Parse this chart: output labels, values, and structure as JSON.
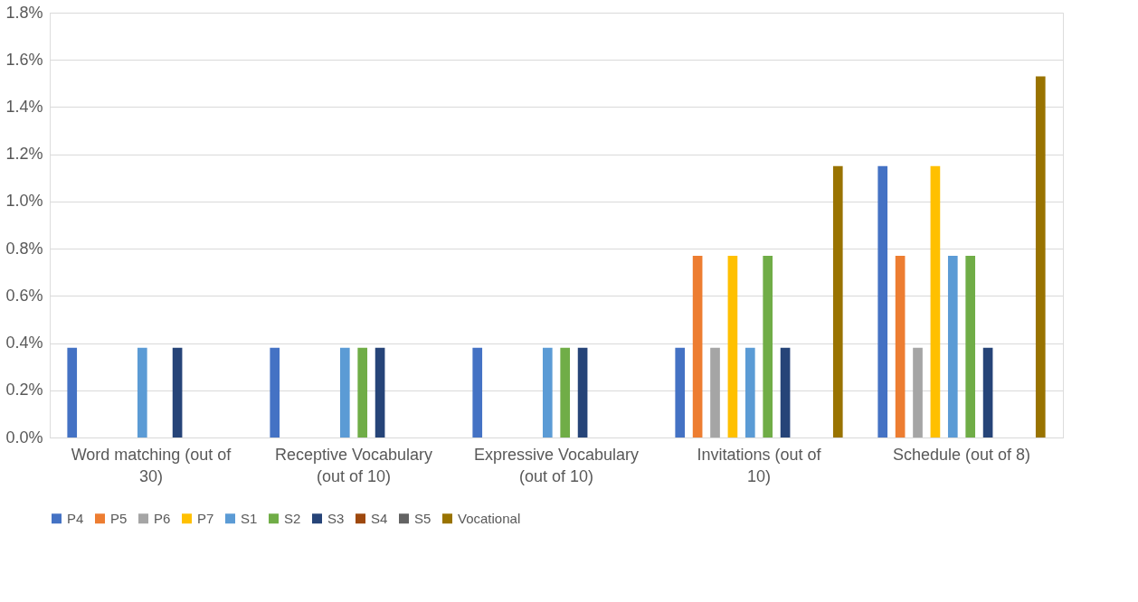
{
  "chart_data": {
    "type": "bar",
    "categories": [
      "Word matching (out of 30)",
      "Receptive Vocabulary (out of 10)",
      "Expressive Vocabulary (out of 10)",
      "Invitations (out of 10)",
      "Schedule (out of 8)"
    ],
    "series": [
      {
        "name": "P4",
        "color": "#4472c4",
        "values": [
          0.38,
          0.38,
          0.38,
          0.38,
          1.15
        ]
      },
      {
        "name": "P5",
        "color": "#ed7d31",
        "values": [
          0,
          0,
          0,
          0.77,
          0.77
        ]
      },
      {
        "name": "P6",
        "color": "#a5a5a5",
        "values": [
          0,
          0,
          0,
          0.38,
          0.38
        ]
      },
      {
        "name": "P7",
        "color": "#ffc000",
        "values": [
          0,
          0,
          0,
          0.77,
          1.15
        ]
      },
      {
        "name": "S1",
        "color": "#5b9bd5",
        "values": [
          0.38,
          0.38,
          0.38,
          0.38,
          0.77
        ]
      },
      {
        "name": "S2",
        "color": "#70ad47",
        "values": [
          0,
          0.38,
          0.38,
          0.77,
          0.77
        ]
      },
      {
        "name": "S3",
        "color": "#264478",
        "values": [
          0.38,
          0.38,
          0.38,
          0.38,
          0.38
        ]
      },
      {
        "name": "S4",
        "color": "#9e480e",
        "values": [
          0,
          0,
          0,
          0,
          0
        ]
      },
      {
        "name": "S5",
        "color": "#636363",
        "values": [
          0,
          0,
          0,
          0,
          0
        ]
      },
      {
        "name": "Vocational",
        "color": "#997300",
        "values": [
          0,
          0,
          0,
          1.15,
          1.53
        ]
      }
    ],
    "ylim": [
      0,
      1.8
    ],
    "yticks": [
      {
        "value": 0,
        "label": "0.0%"
      },
      {
        "value": 0.2,
        "label": "0.2%"
      },
      {
        "value": 0.4,
        "label": "0.4%"
      },
      {
        "value": 0.6,
        "label": "0.6%"
      },
      {
        "value": 0.8,
        "label": "0.8%"
      },
      {
        "value": 1.0,
        "label": "1.0%"
      },
      {
        "value": 1.2,
        "label": "1.2%"
      },
      {
        "value": 1.4,
        "label": "1.4%"
      },
      {
        "value": 1.6,
        "label": "1.6%"
      },
      {
        "value": 1.8,
        "label": "1.8%"
      }
    ],
    "grid": "y",
    "legend": "bottom"
  }
}
